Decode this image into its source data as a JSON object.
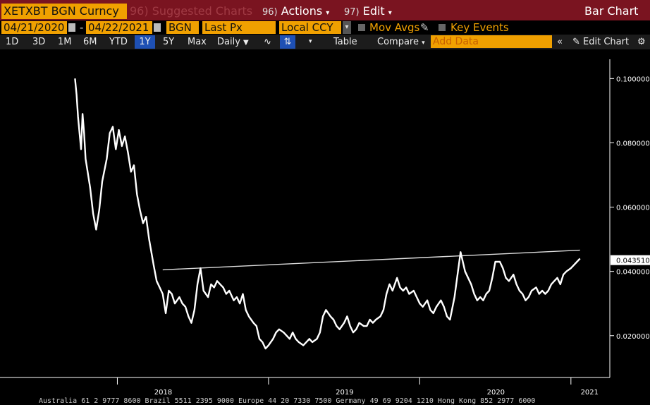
{
  "header": {
    "ticker": "XETXBT BGN Curncy",
    "suggested": "96) Suggested Charts",
    "actions_num": "96)",
    "actions_label": "Actions",
    "edit_num": "97)",
    "edit_label": "Edit",
    "title": "Bar Chart"
  },
  "params": {
    "start_date": "04/21/2020",
    "end_date": "04/22/2021",
    "source": "BGN",
    "field": "Last Px",
    "currency": "Local CCY",
    "mov_avgs": "Mov Avgs",
    "key_events": "Key Events"
  },
  "toolbar": {
    "ranges": [
      "1D",
      "3D",
      "1M",
      "6M",
      "YTD",
      "1Y",
      "5Y",
      "Max"
    ],
    "selected_range": "1Y",
    "period": "Daily",
    "table": "Table",
    "compare": "Compare",
    "add_data_placeholder": "Add Data",
    "edit_chart": "Edit Chart"
  },
  "footer_ticker": "Australia 61 2 9777 8600 Brazil 5511 2395 9000 Europe 44 20 7330 7500 Germany 49 69 9204 1210 Hong Kong 852 2977 6000",
  "colors": {
    "accent": "#f0a000",
    "header": "#7a1420",
    "line": "#ffffff"
  },
  "chart_data": {
    "type": "line",
    "x_ticks": [
      "2018",
      "2019",
      "2020",
      "2021"
    ],
    "y_ticks": [
      "0.100000",
      "0.080000",
      "0.060000",
      "0.040000",
      "0.020000"
    ],
    "ylim": [
      0.007,
      0.106
    ],
    "last_price_label": "0.043510",
    "grid": false,
    "series": [
      {
        "x": [
          2017.72,
          2017.73,
          2017.74,
          2017.76,
          2017.77,
          2017.78,
          2017.79,
          2017.8,
          2017.82,
          2017.84,
          2017.86,
          2017.88,
          2017.9,
          2017.93,
          2017.95,
          2017.97,
          2017.99,
          2018.01,
          2018.03,
          2018.05,
          2018.07,
          2018.09,
          2018.11,
          2018.13,
          2018.15,
          2018.17,
          2018.19,
          2018.21,
          2018.24,
          2018.26,
          2018.28,
          2018.3,
          2018.32,
          2018.34,
          2018.36,
          2018.38,
          2018.41,
          2018.43,
          2018.45,
          2018.47,
          2018.49,
          2018.51,
          2018.53,
          2018.55,
          2018.57,
          2018.6,
          2018.62,
          2018.64,
          2018.66,
          2018.68,
          2018.7,
          2018.72,
          2018.74,
          2018.77,
          2018.79,
          2018.81,
          2018.83,
          2018.85,
          2018.87,
          2018.9,
          2018.92,
          2018.94,
          2018.96,
          2018.98,
          2019.0,
          2019.03,
          2019.05,
          2019.07,
          2019.1,
          2019.12,
          2019.14,
          2019.16,
          2019.18,
          2019.2,
          2019.23,
          2019.25,
          2019.27,
          2019.29,
          2019.32,
          2019.34,
          2019.36,
          2019.38,
          2019.41,
          2019.43,
          2019.45,
          2019.47,
          2019.5,
          2019.52,
          2019.54,
          2019.56,
          2019.58,
          2019.6,
          2019.63,
          2019.65,
          2019.67,
          2019.69,
          2019.71,
          2019.74,
          2019.76,
          2019.78,
          2019.8,
          2019.82,
          2019.85,
          2019.87,
          2019.89,
          2019.91,
          2019.93,
          2019.96,
          2019.98,
          2020.0,
          2020.02,
          2020.05,
          2020.07,
          2020.09,
          2020.11,
          2020.14,
          2020.16,
          2020.18,
          2020.2,
          2020.23,
          2020.25,
          2020.27,
          2020.3,
          2020.32,
          2020.34,
          2020.36,
          2020.38,
          2020.4,
          2020.42,
          2020.44,
          2020.46,
          2020.48,
          2020.5,
          2020.53,
          2020.55,
          2020.57,
          2020.59,
          2020.62,
          2020.64,
          2020.66,
          2020.68,
          2020.7,
          2020.72,
          2020.74,
          2020.77,
          2020.79,
          2020.81,
          2020.83,
          2020.85,
          2020.87,
          2020.89,
          2020.91,
          2020.93,
          2020.95,
          2020.97,
          2021.0,
          2021.02,
          2021.04,
          2021.06
        ],
        "y": [
          0.1,
          0.095,
          0.088,
          0.078,
          0.089,
          0.083,
          0.075,
          0.072,
          0.066,
          0.058,
          0.053,
          0.059,
          0.068,
          0.075,
          0.083,
          0.085,
          0.078,
          0.084,
          0.079,
          0.082,
          0.077,
          0.071,
          0.073,
          0.064,
          0.059,
          0.055,
          0.057,
          0.05,
          0.042,
          0.037,
          0.035,
          0.033,
          0.027,
          0.034,
          0.033,
          0.03,
          0.032,
          0.03,
          0.029,
          0.026,
          0.024,
          0.028,
          0.036,
          0.041,
          0.034,
          0.032,
          0.036,
          0.035,
          0.037,
          0.036,
          0.035,
          0.033,
          0.034,
          0.031,
          0.032,
          0.03,
          0.033,
          0.028,
          0.026,
          0.024,
          0.023,
          0.019,
          0.018,
          0.016,
          0.017,
          0.019,
          0.021,
          0.022,
          0.021,
          0.02,
          0.019,
          0.021,
          0.019,
          0.018,
          0.017,
          0.018,
          0.019,
          0.018,
          0.019,
          0.021,
          0.026,
          0.028,
          0.026,
          0.025,
          0.023,
          0.022,
          0.024,
          0.026,
          0.023,
          0.021,
          0.022,
          0.024,
          0.023,
          0.023,
          0.025,
          0.024,
          0.025,
          0.026,
          0.028,
          0.033,
          0.036,
          0.034,
          0.038,
          0.035,
          0.034,
          0.035,
          0.033,
          0.034,
          0.032,
          0.03,
          0.029,
          0.031,
          0.028,
          0.027,
          0.029,
          0.031,
          0.029,
          0.026,
          0.025,
          0.032,
          0.039,
          0.046,
          0.04,
          0.038,
          0.036,
          0.033,
          0.031,
          0.032,
          0.031,
          0.033,
          0.034,
          0.038,
          0.043,
          0.043,
          0.041,
          0.038,
          0.037,
          0.039,
          0.036,
          0.034,
          0.033,
          0.031,
          0.032,
          0.034,
          0.035,
          0.033,
          0.034,
          0.033,
          0.034,
          0.036,
          0.037,
          0.038,
          0.036,
          0.039,
          0.04,
          0.041,
          0.042,
          0.043,
          0.044
        ]
      }
    ],
    "trendline": {
      "x": [
        2018.3,
        2021.06
      ],
      "y": [
        0.0405,
        0.0466
      ]
    }
  }
}
